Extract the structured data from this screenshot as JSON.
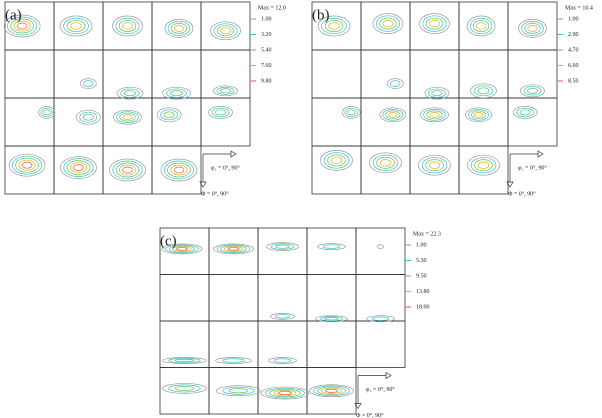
{
  "panels": [
    {
      "label": "(a)",
      "max": "Max = 12.0",
      "levels": [
        "1.00",
        "3.20",
        "5.40",
        "7.60",
        "9.80"
      ],
      "phi1_axis": "φ₁ = 0°, 90°",
      "Phi_axis": "Φ = 0°, 90°"
    },
    {
      "label": "(b)",
      "max": "Max = 10.4",
      "levels": [
        "1.00",
        "2.90",
        "4.70",
        "6.60",
        "8.50"
      ],
      "phi1_axis": "φ₁ = 0°, 90°",
      "Phi_axis": "Φ = 0°, 90°"
    },
    {
      "label": "(c)",
      "max": "Max = 22.3",
      "levels": [
        "1.00",
        "5.30",
        "9.50",
        "13.80",
        "18.00"
      ],
      "phi1_axis": "φ₁ = 0°, 90°",
      "Phi_axis": "Φ = 0°, 90°"
    }
  ]
}
